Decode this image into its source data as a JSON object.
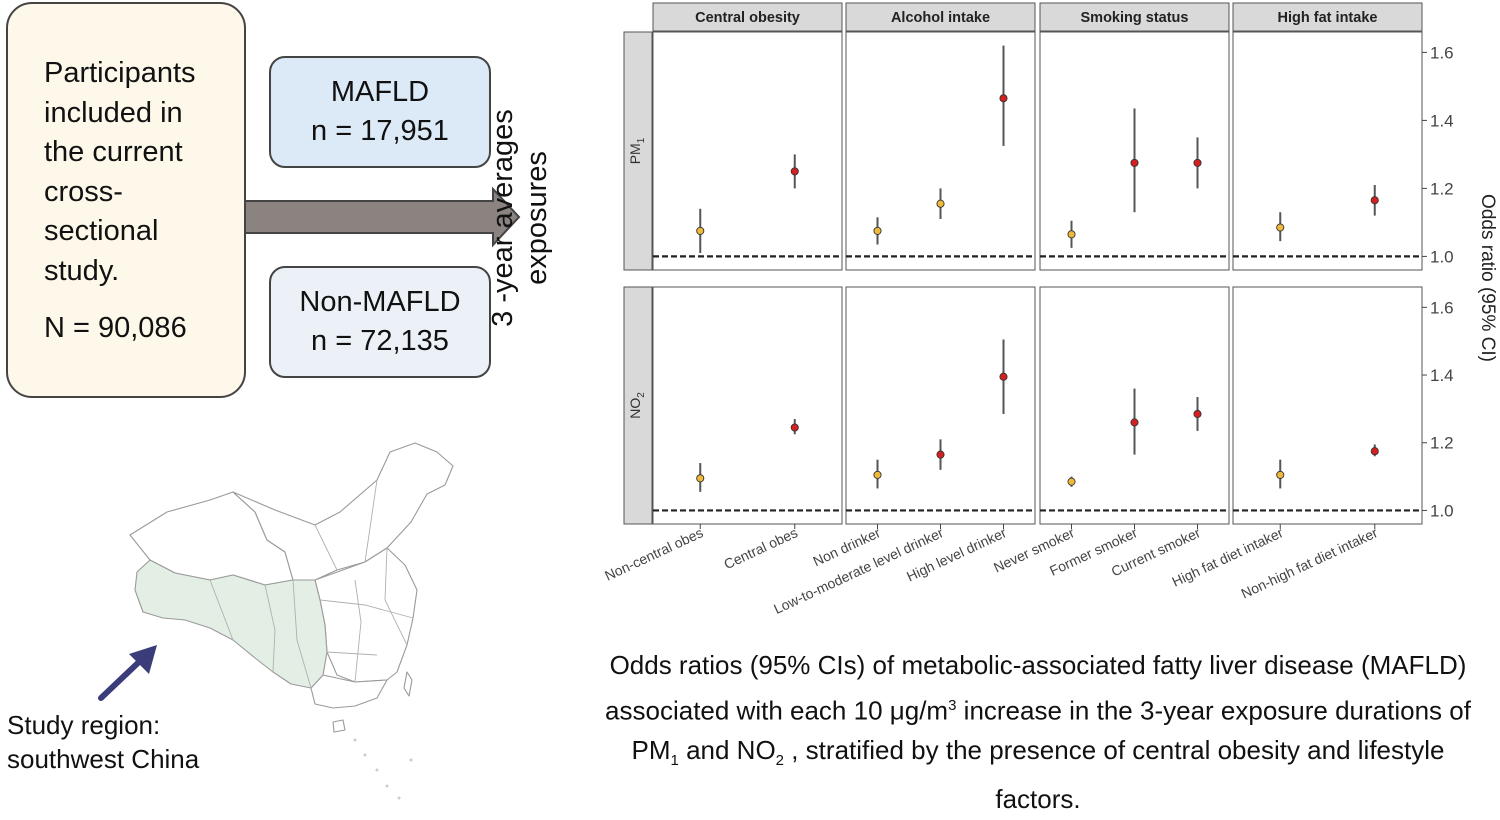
{
  "flow": {
    "participants_lines": [
      "Participants",
      "included in",
      "the current",
      "cross-",
      "sectional",
      "study."
    ],
    "participants_count": "N = 90,086",
    "mafld_label": "MAFLD",
    "mafld_n": "n = 17,951",
    "nonmafld_label": "Non-MAFLD",
    "nonmafld_n": "n = 72,135",
    "exposure_line1": "3 -year averages",
    "exposure_line2": "exposures"
  },
  "map": {
    "region_line1": "Study region:",
    "region_line2": "southwest China",
    "highlight_color": "#e3eee5",
    "arrow_color": "#3a3d7a"
  },
  "chart_data": {
    "type": "scatter",
    "subtype": "forest plot (point estimate with 95% CI error bars), faceted",
    "facet_columns": [
      "Central obesity",
      "Alcohol intake",
      "Smoking status",
      "High fat intake"
    ],
    "facet_rows": [
      {
        "base": "PM",
        "sub": "1"
      },
      {
        "base": "NO",
        "sub": "2"
      }
    ],
    "categories": [
      [
        "Non-central obes",
        "Central obes"
      ],
      [
        "Non drinker",
        "Low-to-moderate level drinker",
        "High level drinker"
      ],
      [
        "Never smoker",
        "Former smoker",
        "Current smoker"
      ],
      [
        "High fat diet intaker",
        "Non-high fat diet intaker"
      ]
    ],
    "ylabel": "Odds ratio (95% CI)",
    "yticks": [
      1.0,
      1.2,
      1.4,
      1.6
    ],
    "ylim": [
      0.96,
      1.66
    ],
    "reference_line": 1.0,
    "grid": false,
    "colors": {
      "low": "#f0b93a",
      "high": "#d42020"
    },
    "series": [
      {
        "row": 0,
        "panels": [
          [
            {
              "or": 1.075,
              "lo": 1.01,
              "hi": 1.14,
              "color": "low"
            },
            {
              "or": 1.25,
              "lo": 1.2,
              "hi": 1.3,
              "color": "high"
            }
          ],
          [
            {
              "or": 1.075,
              "lo": 1.035,
              "hi": 1.115,
              "color": "low"
            },
            {
              "or": 1.155,
              "lo": 1.11,
              "hi": 1.2,
              "color": "low"
            },
            {
              "or": 1.465,
              "lo": 1.325,
              "hi": 1.62,
              "color": "high"
            }
          ],
          [
            {
              "or": 1.065,
              "lo": 1.025,
              "hi": 1.105,
              "color": "low"
            },
            {
              "or": 1.275,
              "lo": 1.13,
              "hi": 1.435,
              "color": "high"
            },
            {
              "or": 1.275,
              "lo": 1.2,
              "hi": 1.35,
              "color": "high"
            }
          ],
          [
            {
              "or": 1.085,
              "lo": 1.045,
              "hi": 1.13,
              "color": "low"
            },
            {
              "or": 1.165,
              "lo": 1.12,
              "hi": 1.21,
              "color": "high"
            }
          ]
        ]
      },
      {
        "row": 1,
        "panels": [
          [
            {
              "or": 1.095,
              "lo": 1.055,
              "hi": 1.14,
              "color": "low"
            },
            {
              "or": 1.245,
              "lo": 1.225,
              "hi": 1.27,
              "color": "high"
            }
          ],
          [
            {
              "or": 1.105,
              "lo": 1.065,
              "hi": 1.15,
              "color": "low"
            },
            {
              "or": 1.165,
              "lo": 1.12,
              "hi": 1.21,
              "color": "high"
            },
            {
              "or": 1.395,
              "lo": 1.285,
              "hi": 1.505,
              "color": "high"
            }
          ],
          [
            {
              "or": 1.085,
              "lo": 1.07,
              "hi": 1.1,
              "color": "low"
            },
            {
              "or": 1.26,
              "lo": 1.165,
              "hi": 1.36,
              "color": "high"
            },
            {
              "or": 1.285,
              "lo": 1.235,
              "hi": 1.335,
              "color": "high"
            }
          ],
          [
            {
              "or": 1.105,
              "lo": 1.065,
              "hi": 1.15,
              "color": "low"
            },
            {
              "or": 1.175,
              "lo": 1.16,
              "hi": 1.195,
              "color": "high"
            }
          ]
        ]
      }
    ]
  },
  "caption": {
    "part1": "Odds ratios (95% CIs) of metabolic-associated fatty liver disease (MAFLD) associated with each 10 μg/m",
    "sup3": "3",
    "part2": " increase in the 3-year exposure durations of PM",
    "sub1": "1",
    "part3": " and NO",
    "sub2": "2",
    "part4": " , stratified by the presence of central obesity and lifestyle factors."
  }
}
